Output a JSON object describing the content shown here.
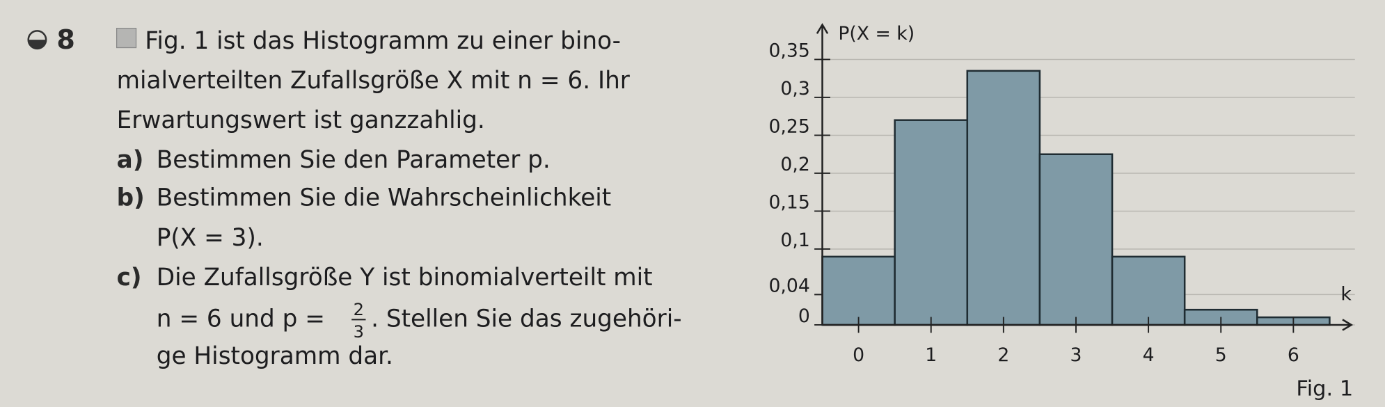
{
  "exercise": {
    "number": "8",
    "lines": [
      "Fig. 1 ist das Histogramm zu einer bino-",
      "mialverteilten Zufallsgröße X mit  n = 6.  Ihr",
      "Erwartungswert ist ganzzahlig."
    ],
    "parts": [
      {
        "label": "a)",
        "lines": [
          "Bestimmen Sie den Parameter p."
        ]
      },
      {
        "label": "b)",
        "lines": [
          "Bestimmen Sie die Wahrscheinlichkeit",
          "P(X = 3)."
        ]
      },
      {
        "label": "c)",
        "lines": [
          "Die Zufallsgröße Y ist binomialverteilt mit",
          "n = 6  und  p = ",
          ". Stellen Sie das zugehöri-",
          "ge Histogramm dar."
        ],
        "fraction": {
          "numerator": "2",
          "denominator": "3"
        }
      }
    ],
    "caption": "Fig. 1"
  },
  "chart_data": {
    "type": "histogram",
    "y_label": "P(X = k)",
    "x_label": "k",
    "bins": [
      -0.5,
      0.5,
      1.5,
      2.5,
      3.5,
      4.5,
      5.5,
      6.5
    ],
    "values": [
      0.09,
      0.27,
      0.335,
      0.225,
      0.09,
      0.02,
      0.01
    ],
    "color": "#7f9aa6",
    "xlim": [
      -0.5,
      6.8
    ],
    "ylim": [
      0,
      0.39
    ],
    "xticks": [
      0,
      1,
      2,
      3,
      4,
      5,
      6
    ],
    "yticks": [
      0,
      {
        "value": 0.04,
        "label": "0,04"
      },
      {
        "value": 0.1,
        "label": "0,1"
      },
      {
        "value": 0.15,
        "label": "0,15"
      },
      {
        "value": 0.2,
        "label": "0,2"
      },
      {
        "value": 0.25,
        "label": "0,25"
      },
      {
        "value": 0.3,
        "label": "0,3"
      },
      {
        "value": 0.35,
        "label": "0,35"
      }
    ],
    "grid": true
  }
}
